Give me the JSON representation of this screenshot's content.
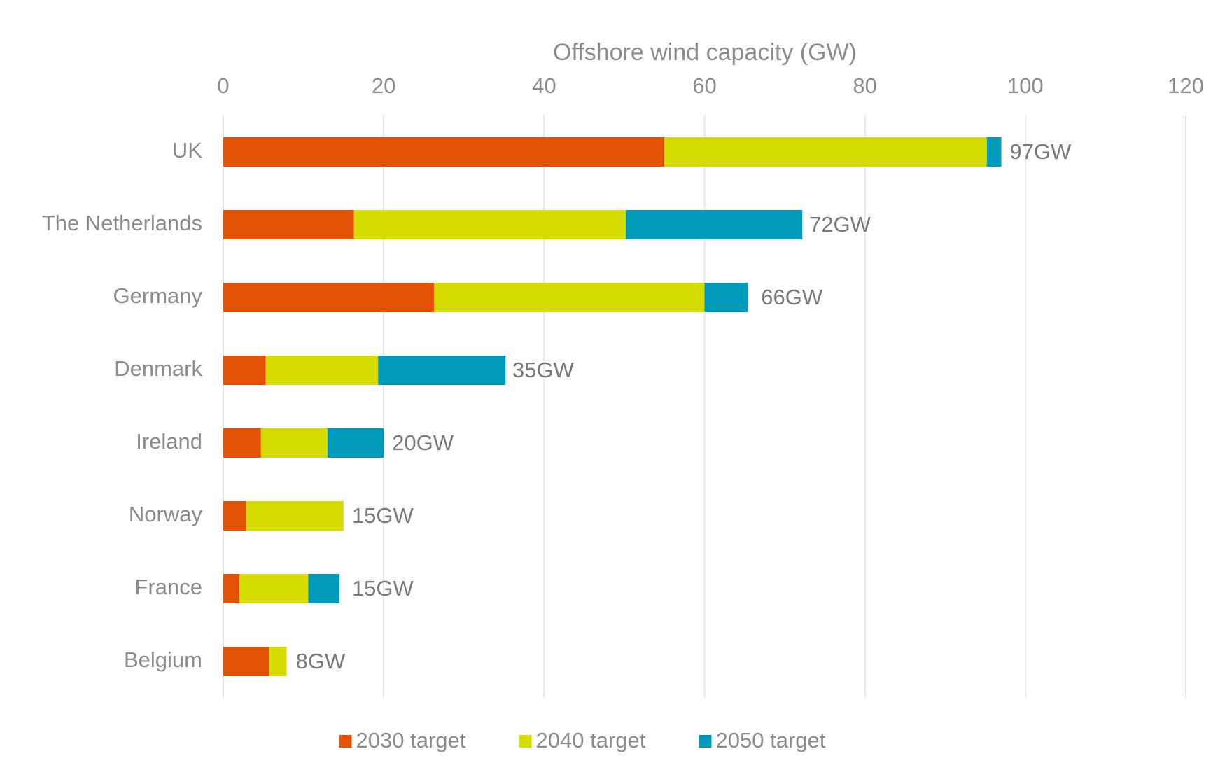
{
  "chart_data": {
    "type": "stacked-bar-horizontal",
    "x_label": "Offshore wind capacity (GW)",
    "categories": [
      "UK",
      "The Netherlands",
      "Germany",
      "Denmark",
      "Ireland",
      "Norway",
      "France",
      "Belgium"
    ],
    "series": [
      {
        "name": "2030 target",
        "color": "#e35205",
        "values": [
          55,
          16.3,
          26.3,
          5.3,
          4.7,
          2.9,
          2,
          5.7
        ]
      },
      {
        "name": "2040 target",
        "color": "#d5dc00",
        "values": [
          40.2,
          33.9,
          33.7,
          14,
          8.3,
          12.1,
          8.6,
          2.2
        ]
      },
      {
        "name": "2050 target",
        "color": "#009bbb",
        "values": [
          1.8,
          22,
          5.4,
          15.9,
          7,
          0,
          3.9,
          0
        ]
      }
    ],
    "totals": [
      97,
      72,
      66,
      35,
      20,
      15,
      15,
      8
    ],
    "total_labels": [
      "97GW",
      "72GW",
      "66GW",
      "35GW",
      "20GW",
      "15GW",
      "15GW",
      "8GW"
    ],
    "xlim": [
      0,
      120
    ],
    "xticks": [
      0,
      20,
      40,
      60,
      80,
      100,
      120
    ],
    "grid": true,
    "legend": "bottom"
  }
}
